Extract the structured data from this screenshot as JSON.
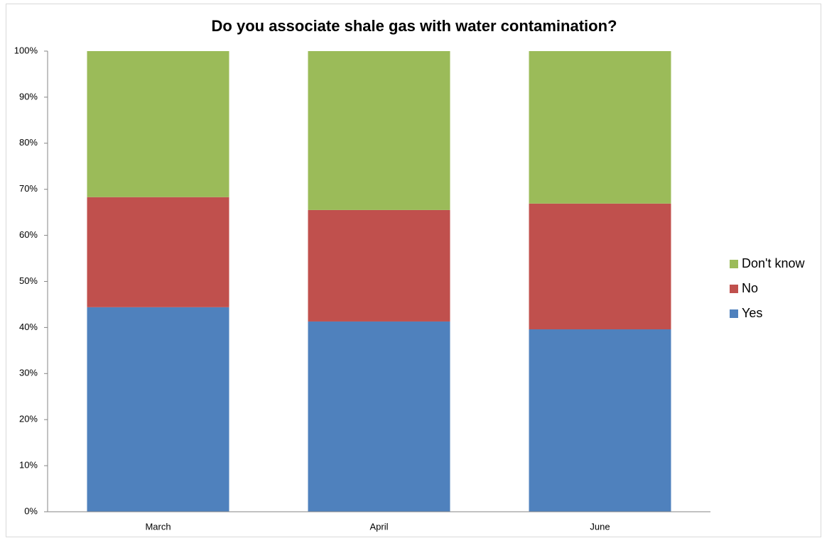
{
  "chart_data": {
    "type": "stacked-bar",
    "title": "Do you associate shale gas with water contamination?",
    "categories": [
      "March",
      "April",
      "June"
    ],
    "series": [
      {
        "name": "Yes",
        "color": "#4f81bd",
        "values": [
          44.4,
          41.3,
          39.6
        ]
      },
      {
        "name": "No",
        "color": "#c0504d",
        "values": [
          23.9,
          24.2,
          27.3
        ]
      },
      {
        "name": "Don't know",
        "color": "#9bbb59",
        "values": [
          31.7,
          34.5,
          33.1
        ]
      }
    ],
    "ylim": [
      0,
      100
    ],
    "yticks": [
      {
        "value": 0,
        "label": "0%"
      },
      {
        "value": 10,
        "label": "10%"
      },
      {
        "value": 20,
        "label": "20%"
      },
      {
        "value": 30,
        "label": "30%"
      },
      {
        "value": 40,
        "label": "40%"
      },
      {
        "value": 50,
        "label": "50%"
      },
      {
        "value": 60,
        "label": "60%"
      },
      {
        "value": 70,
        "label": "70%"
      },
      {
        "value": 80,
        "label": "80%"
      },
      {
        "value": 90,
        "label": "90%"
      },
      {
        "value": 100,
        "label": "100%"
      }
    ],
    "legend": "right",
    "grid": false
  }
}
